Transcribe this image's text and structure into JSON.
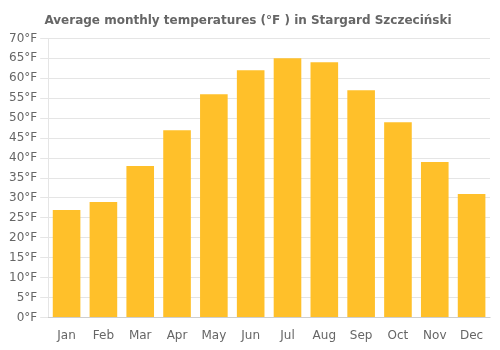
{
  "chart_data": {
    "type": "bar",
    "title": "Average monthly temperatures (°F ) in Stargard Szczeciński",
    "categories": [
      "Jan",
      "Feb",
      "Mar",
      "Apr",
      "May",
      "Jun",
      "Jul",
      "Aug",
      "Sep",
      "Oct",
      "Nov",
      "Dec"
    ],
    "values": [
      27,
      29,
      38,
      47,
      56,
      62,
      65,
      64,
      57,
      49,
      39,
      31
    ],
    "color": "#FFC02A",
    "ylim": [
      0,
      70
    ],
    "yticks": [
      {
        "value": 0,
        "label": "0°F"
      },
      {
        "value": 5,
        "label": "5°F"
      },
      {
        "value": 10,
        "label": "10°F"
      },
      {
        "value": 15,
        "label": "15°F"
      },
      {
        "value": 20,
        "label": "20°F"
      },
      {
        "value": 25,
        "label": "25°F"
      },
      {
        "value": 30,
        "label": "30°F"
      },
      {
        "value": 35,
        "label": "35°F"
      },
      {
        "value": 40,
        "label": "40°F"
      },
      {
        "value": 45,
        "label": "45°F"
      },
      {
        "value": 50,
        "label": "50°F"
      },
      {
        "value": 55,
        "label": "55°F"
      },
      {
        "value": 60,
        "label": "60°F"
      },
      {
        "value": 65,
        "label": "65°F"
      },
      {
        "value": 70,
        "label": "70°F"
      }
    ],
    "grid": true
  }
}
